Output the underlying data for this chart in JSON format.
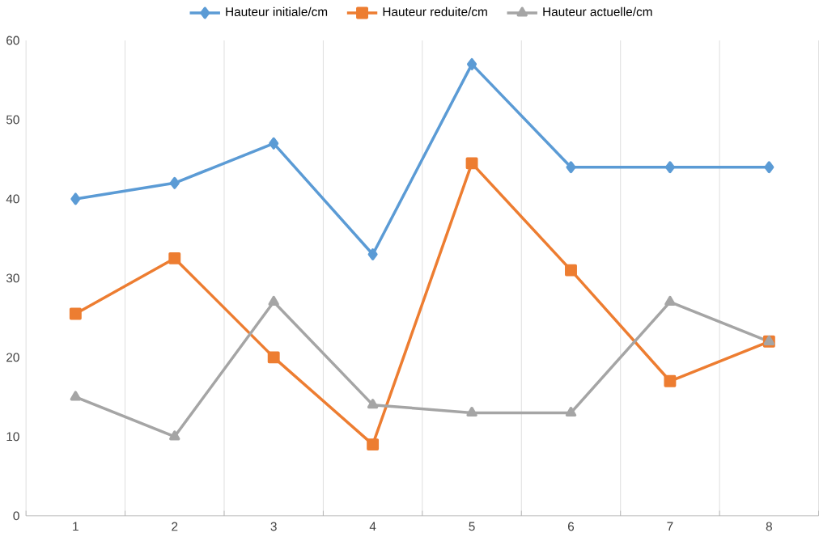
{
  "chart_data": {
    "type": "line",
    "categories": [
      "1",
      "2",
      "3",
      "4",
      "5",
      "6",
      "7",
      "8"
    ],
    "series": [
      {
        "name": "Hauteur initiale/cm",
        "color": "#5b9bd5",
        "marker": "diamond",
        "values": [
          40,
          42,
          47,
          33,
          57,
          44,
          44,
          44
        ]
      },
      {
        "name": "Hauteur reduite/cm",
        "color": "#ed7d31",
        "marker": "square",
        "values": [
          25.5,
          32.5,
          20,
          9,
          44.5,
          31,
          17,
          22
        ]
      },
      {
        "name": "Hauteur actuelle/cm",
        "color": "#a5a5a5",
        "marker": "triangle",
        "values": [
          15,
          10,
          27,
          14,
          13,
          13,
          27,
          22
        ]
      }
    ],
    "ylim": [
      0,
      60
    ],
    "yticks": [
      0,
      10,
      20,
      30,
      40,
      50,
      60
    ],
    "grid": "x",
    "legend": "top"
  }
}
